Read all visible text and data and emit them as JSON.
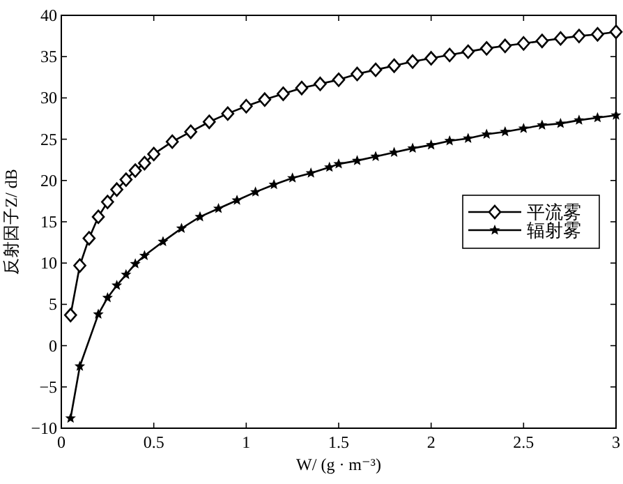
{
  "chart_data": {
    "type": "line",
    "xlabel": "W/ (g · m⁻³)",
    "ylabel": "反射因子Z/ dB",
    "xlim": [
      0,
      3
    ],
    "xticks": [
      0,
      0.5,
      1,
      1.5,
      2,
      2.5,
      3
    ],
    "ylim": [
      -10,
      40
    ],
    "yticks": [
      -10,
      -5,
      0,
      5,
      10,
      15,
      20,
      25,
      30,
      35,
      40
    ],
    "grid": false,
    "legend": "right",
    "line_style": "solid",
    "series": [
      {
        "name": "平流雾",
        "color": "#000000",
        "marker": "diamond",
        "x": [
          0.05,
          0.1,
          0.15,
          0.2,
          0.25,
          0.3,
          0.35,
          0.4,
          0.45,
          0.5,
          0.6,
          0.7,
          0.8,
          0.9,
          1.0,
          1.1,
          1.2,
          1.3,
          1.4,
          1.5,
          1.6,
          1.7,
          1.8,
          1.9,
          2.0,
          2.1,
          2.2,
          2.3,
          2.4,
          2.5,
          2.6,
          2.7,
          2.8,
          2.9,
          3.0
        ],
        "values": [
          3.7,
          9.7,
          13.0,
          15.6,
          17.4,
          18.9,
          20.1,
          21.2,
          22.1,
          23.2,
          24.7,
          25.9,
          27.1,
          28.1,
          29.0,
          29.8,
          30.5,
          31.2,
          31.7,
          32.2,
          32.9,
          33.4,
          33.9,
          34.4,
          34.8,
          35.2,
          35.6,
          36.0,
          36.3,
          36.6,
          36.9,
          37.2,
          37.5,
          37.7,
          38.0
        ]
      },
      {
        "name": "辐射雾",
        "color": "#000000",
        "marker": "star",
        "x": [
          0.05,
          0.1,
          0.2,
          0.25,
          0.3,
          0.35,
          0.4,
          0.45,
          0.55,
          0.65,
          0.75,
          0.85,
          0.95,
          1.05,
          1.15,
          1.25,
          1.35,
          1.45,
          1.5,
          1.6,
          1.7,
          1.8,
          1.9,
          2.0,
          2.1,
          2.2,
          2.3,
          2.4,
          2.5,
          2.6,
          2.7,
          2.8,
          2.9,
          3.0
        ],
        "values": [
          -8.8,
          -2.5,
          3.8,
          5.8,
          7.3,
          8.6,
          9.9,
          10.9,
          12.6,
          14.2,
          15.6,
          16.6,
          17.6,
          18.6,
          19.5,
          20.3,
          20.9,
          21.6,
          22.0,
          22.4,
          22.9,
          23.4,
          23.9,
          24.3,
          24.8,
          25.1,
          25.6,
          25.9,
          26.3,
          26.7,
          26.9,
          27.3,
          27.6,
          27.9
        ]
      }
    ]
  }
}
